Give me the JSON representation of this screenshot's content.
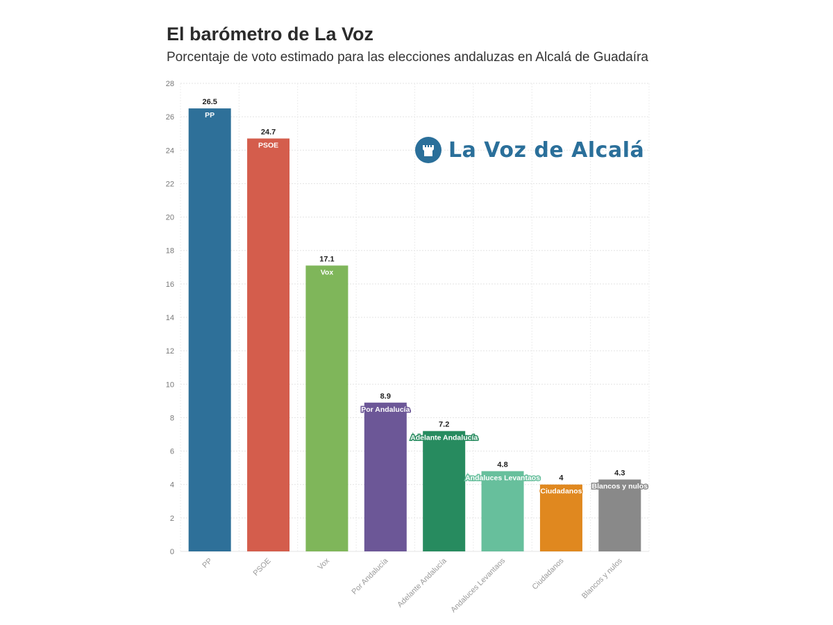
{
  "header": {
    "title": "El barómetro de La Voz",
    "subtitle": "Porcentaje de voto estimado para las elecciones andaluzas en Alcalá de Guadaíra"
  },
  "logo": {
    "text": "La Voz de Alcalá",
    "color": "#2a6f9a",
    "icon": "castle-tower-icon"
  },
  "chart_data": {
    "type": "bar",
    "title": "El barómetro de La Voz",
    "subtitle": "Porcentaje de voto estimado para las elecciones andaluzas en Alcalá de Guadaíra",
    "xlabel": "",
    "ylabel": "",
    "ylim": [
      0,
      28
    ],
    "yticks": [
      0,
      2,
      4,
      6,
      8,
      10,
      12,
      14,
      16,
      18,
      20,
      22,
      24,
      26,
      28
    ],
    "grid": true,
    "categories": [
      "PP",
      "PSOE",
      "Vox",
      "Por Andalucía",
      "Adelante Andalucía",
      "Andaluces Levantaos",
      "Ciudadanos",
      "Blancos y nulos"
    ],
    "values": [
      26.5,
      24.7,
      17.1,
      8.9,
      7.2,
      4.8,
      4,
      4.3
    ],
    "value_labels": [
      "26.5",
      "24.7",
      "17.1",
      "8.9",
      "7.2",
      "4.8",
      "4",
      "4.3"
    ],
    "bar_labels": [
      "PP",
      "PSOE",
      "Vox",
      "Por Andalucía",
      "Adelante Andalucía",
      "Andaluces Levantaos",
      "Ciudadanos",
      "Blancos y nulos"
    ],
    "colors": [
      "#2e7099",
      "#d45d4c",
      "#7fb65a",
      "#6c5797",
      "#278b5f",
      "#67bf9c",
      "#e0881f",
      "#898989"
    ]
  }
}
